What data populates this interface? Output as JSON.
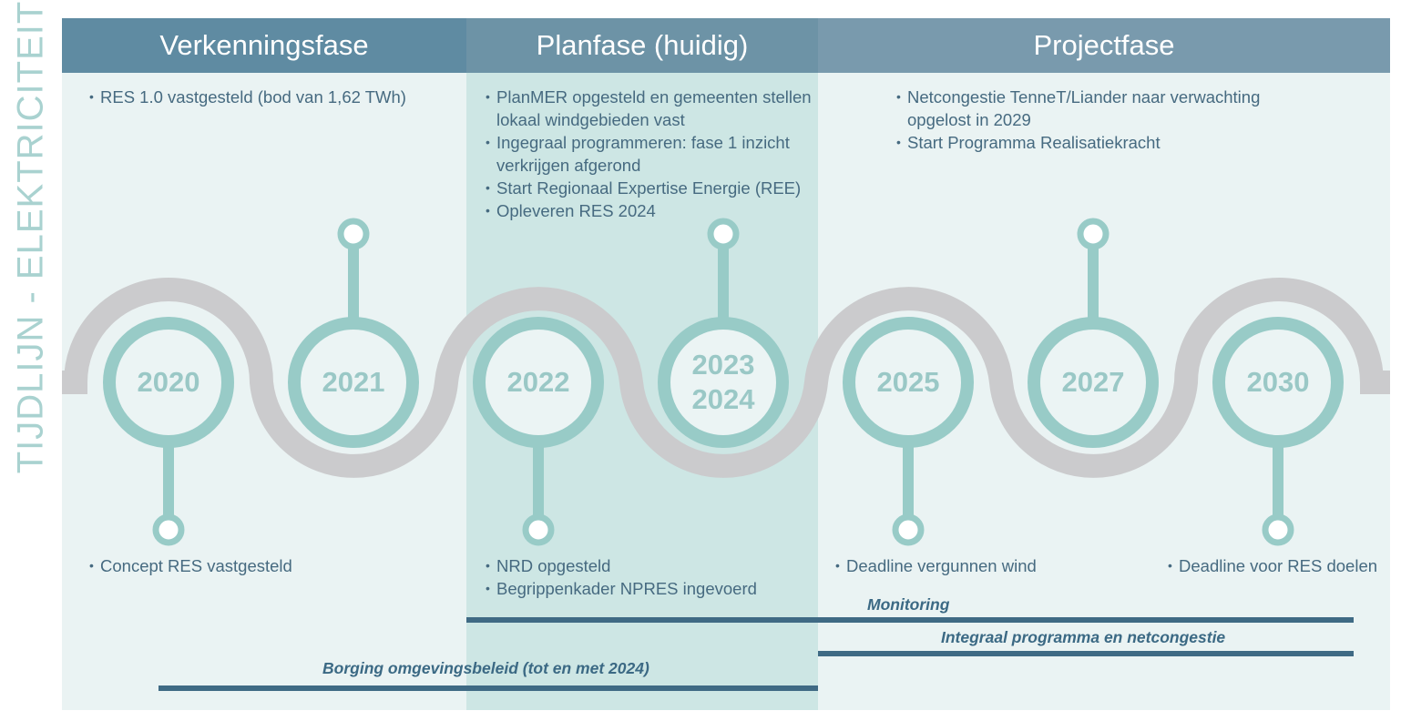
{
  "side_title": "TIJDLIJN - ELEKTRICITEIT",
  "colors": {
    "header_1": "#5f8ba2",
    "header_2": "#6d93a6",
    "header_3": "#799aad",
    "bg_light": "#eaf3f3",
    "bg_mid": "#cde6e4",
    "teal": "#98cbc7",
    "ribbon_grey": "#cbcbcd",
    "navy_line": "#3f6a84",
    "text": "#466a80"
  },
  "phases": [
    {
      "title": "Verkenningsfase"
    },
    {
      "title": "Planfase (huidig)"
    },
    {
      "title": "Projectfase"
    }
  ],
  "top_notes": {
    "verkenning": [
      "RES 1.0 vastgesteld (bod van 1,62 TWh)"
    ],
    "plan": [
      "PlanMER opgesteld en gemeenten stellen lokaal windgebieden vast",
      "Ingegraal programmeren: fase 1 inzicht verkrijgen afgerond",
      "Start Regionaal Expertise Energie (REE)",
      "Opleveren RES 2024"
    ],
    "project": [
      "Netcongestie TenneT/Liander naar verwachting opgelost in 2029",
      "Start Programma Realisatiekracht"
    ]
  },
  "milestones": [
    {
      "year": "2020",
      "pin": "down"
    },
    {
      "year": "2021",
      "pin": "up"
    },
    {
      "year": "2022",
      "pin": "down"
    },
    {
      "year_line1": "2023",
      "year_line2": "2024",
      "pin": "up"
    },
    {
      "year": "2025",
      "pin": "down"
    },
    {
      "year": "2027",
      "pin": "up"
    },
    {
      "year": "2030",
      "pin": "down"
    }
  ],
  "bottom_notes": {
    "m2020": [
      "Concept RES vastgesteld"
    ],
    "m2022": [
      "NRD opgesteld",
      "Begrippenkader NPRES ingevoerd"
    ],
    "m2025": [
      "Deadline vergunnen wind"
    ],
    "m2030": [
      "Deadline voor RES doelen"
    ]
  },
  "tracks": {
    "monitoring": "Monitoring",
    "integraal": "Integraal programma en netcongestie",
    "borging": "Borging omgevingsbeleid (tot en met 2024)"
  }
}
